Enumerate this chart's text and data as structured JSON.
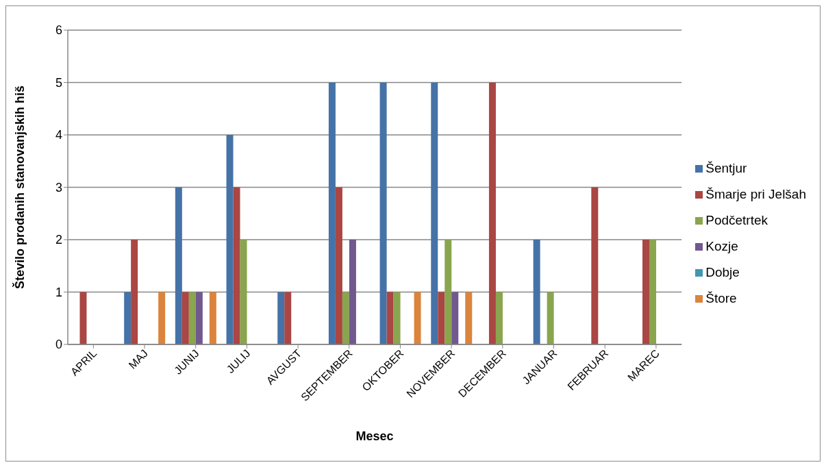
{
  "chart_data": {
    "type": "bar",
    "xlabel": "Mesec",
    "ylabel": "Število prodanih stanovanjskih hiš",
    "categories": [
      "APRIL",
      "MAJ",
      "JUNIJ",
      "JULIJ",
      "AVGUST",
      "SEPTEMBER",
      "OKTOBER",
      "NOVEMBER",
      "DECEMBER",
      "JANUAR",
      "FEBRUAR",
      "MAREC"
    ],
    "series": [
      {
        "name": "Šentjur",
        "color": "#4572a7",
        "values": [
          0,
          1,
          3,
          4,
          1,
          5,
          5,
          5,
          0,
          2,
          0,
          0
        ]
      },
      {
        "name": "Šmarje pri Jelšah",
        "color": "#aa4643",
        "values": [
          1,
          2,
          1,
          3,
          1,
          3,
          1,
          1,
          5,
          0,
          3,
          2
        ]
      },
      {
        "name": "Podčetrtek",
        "color": "#89a54e",
        "values": [
          0,
          0,
          1,
          2,
          0,
          1,
          1,
          2,
          1,
          1,
          0,
          2
        ]
      },
      {
        "name": "Kozje",
        "color": "#71588f",
        "values": [
          0,
          0,
          1,
          0,
          0,
          2,
          0,
          1,
          0,
          0,
          0,
          0
        ]
      },
      {
        "name": "Dobje",
        "color": "#4198af",
        "values": [
          0,
          0,
          0,
          0,
          0,
          0,
          0,
          0,
          0,
          0,
          0,
          0
        ]
      },
      {
        "name": "Štore",
        "color": "#db843d",
        "values": [
          0,
          1,
          1,
          0,
          0,
          0,
          1,
          1,
          0,
          0,
          0,
          0
        ]
      }
    ],
    "ylim": [
      0,
      6
    ],
    "yticks": [
      0,
      1,
      2,
      3,
      4,
      5,
      6
    ],
    "grid": "y",
    "legend": "right"
  }
}
